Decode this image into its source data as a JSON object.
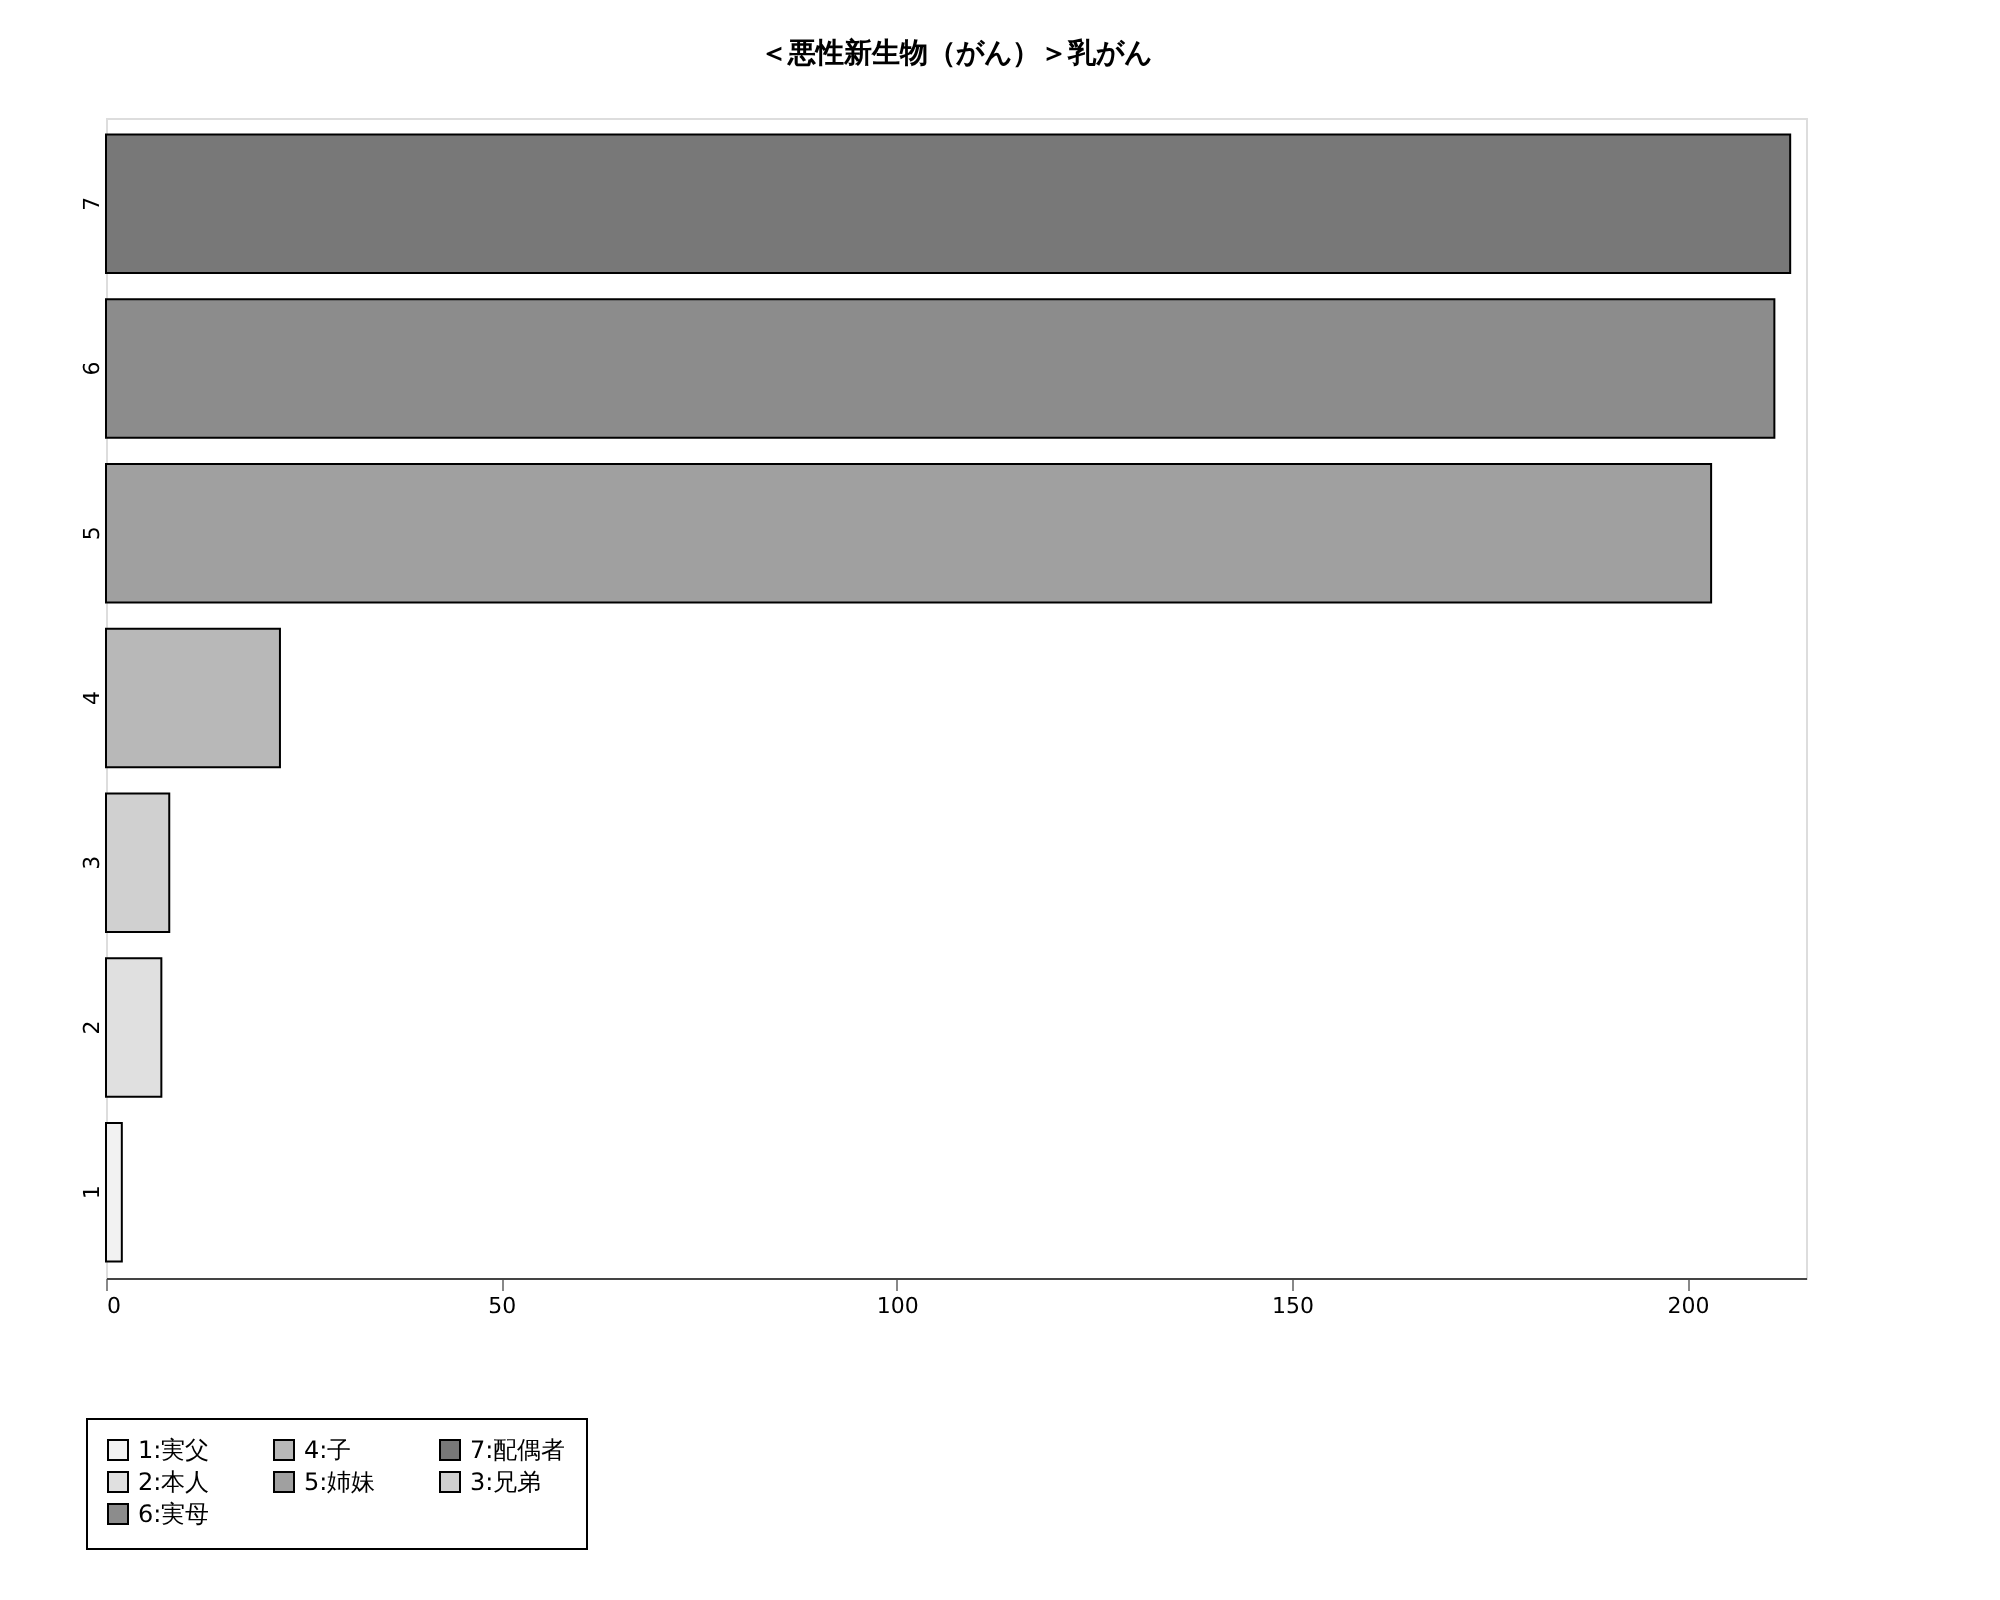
{
  "chart_data": {
    "type": "bar",
    "orientation": "horizontal",
    "title": "＜悪性新生物（がん）＞乳がん",
    "categories": [
      "7",
      "6",
      "5",
      "4",
      "3",
      "2",
      "1"
    ],
    "series": [
      {
        "name": "1:実父",
        "color": "#f2f2f2",
        "values": [
          null,
          null,
          null,
          null,
          null,
          null,
          2
        ]
      },
      {
        "name": "2:本人",
        "color": "#e0e0e0",
        "values": [
          null,
          null,
          null,
          null,
          null,
          7,
          null
        ]
      },
      {
        "name": "3:兄弟",
        "color": "#d0d0d0",
        "values": [
          null,
          null,
          null,
          null,
          8,
          null,
          null
        ]
      },
      {
        "name": "4:子",
        "color": "#b8b8b8",
        "values": [
          null,
          null,
          null,
          22,
          null,
          null,
          null
        ]
      },
      {
        "name": "5:姉妹",
        "color": "#a0a0a0",
        "values": [
          null,
          null,
          203,
          null,
          null,
          null,
          null
        ]
      },
      {
        "name": "6:実母",
        "color": "#8c8c8c",
        "values": [
          null,
          211,
          null,
          null,
          null,
          null,
          null
        ]
      },
      {
        "name": "7:配偶者",
        "color": "#787878",
        "values": [
          213,
          null,
          null,
          null,
          null,
          null,
          null
        ]
      }
    ],
    "xlim": [
      0,
      215
    ],
    "xticks": [
      0,
      50,
      100,
      150,
      200
    ],
    "grid": false,
    "legend": "bottom left"
  }
}
